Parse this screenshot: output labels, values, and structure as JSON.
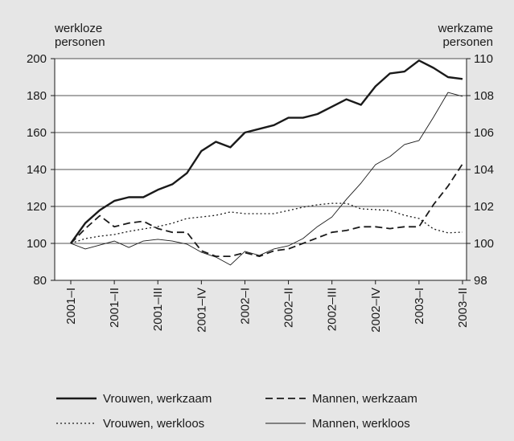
{
  "chart_data": {
    "type": "line",
    "y_label": [
      "werkloze",
      "personen"
    ],
    "y2_label": [
      "werkzame",
      "personen"
    ],
    "categories": [
      "2001–I",
      null,
      null,
      "2001–II",
      null,
      null,
      "2001–III",
      null,
      null,
      "2001–IV",
      null,
      null,
      "2002–I",
      null,
      null,
      "2002–II",
      null,
      null,
      "2002–III",
      null,
      null,
      "2002–IV",
      null,
      null,
      "2003–I",
      null,
      null,
      "2003–II"
    ],
    "ylim": [
      80,
      200
    ],
    "yticks": [
      80,
      100,
      120,
      140,
      160,
      180,
      200
    ],
    "y2lim": [
      98,
      110
    ],
    "y2ticks": [
      98,
      100,
      102,
      104,
      106,
      108,
      110
    ],
    "grid": true,
    "series": [
      {
        "name": "Vrouwen, werkzaam",
        "color": "#1a1a1a",
        "style": "thick",
        "axis": "y2",
        "values": [
          100,
          101.1,
          101.8,
          102.3,
          102.5,
          102.5,
          102.9,
          103.2,
          103.8,
          105.0,
          105.5,
          105.2,
          106.0,
          106.2,
          106.4,
          106.8,
          106.8,
          107.0,
          107.4,
          107.8,
          107.5,
          108.5,
          109.2,
          109.3,
          109.9,
          109.5,
          109.0,
          108.9
        ]
      },
      {
        "name": "Mannen, werkzaam",
        "color": "#1a1a1a",
        "style": "dashed",
        "axis": "y2",
        "values": [
          100,
          100.8,
          101.5,
          100.9,
          101.1,
          101.2,
          100.8,
          100.6,
          100.6,
          99.6,
          99.3,
          99.3,
          99.5,
          99.3,
          99.6,
          99.7,
          100.0,
          100.3,
          100.6,
          100.7,
          100.9,
          100.9,
          100.8,
          100.9,
          100.9,
          102.1,
          103.1,
          104.3
        ]
      },
      {
        "name": "Vrouwen, werkloos",
        "color": "#1a1a1a",
        "style": "dotted",
        "axis": "y",
        "values": [
          100,
          102.6,
          103.9,
          104.8,
          106.5,
          107.8,
          109.1,
          110.9,
          113.5,
          114.3,
          115.2,
          117.0,
          116.1,
          116.1,
          116.1,
          117.8,
          119.6,
          120.9,
          121.7,
          121.7,
          118.7,
          118.3,
          117.8,
          115.2,
          113.5,
          107.8,
          105.7,
          106.1
        ]
      },
      {
        "name": "Mannen, werkloos",
        "color": "#1a1a1a",
        "style": "thin",
        "axis": "y",
        "values": [
          100,
          97,
          99.1,
          101.3,
          97.8,
          101.3,
          102.2,
          101.3,
          99.6,
          95.2,
          92.6,
          88.3,
          95.7,
          93.5,
          97,
          98.7,
          102.6,
          109.1,
          114.3,
          123.9,
          132.6,
          142.6,
          147,
          153.5,
          155.7,
          168.3,
          181.7,
          179.6
        ]
      }
    ]
  }
}
